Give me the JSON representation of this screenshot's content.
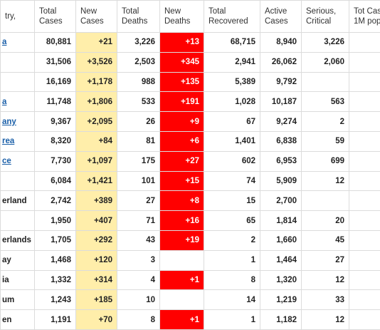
{
  "table": {
    "header": [
      [
        "try,"
      ],
      [
        "Total",
        "Cases"
      ],
      [
        "New",
        "Cases"
      ],
      [
        "Total",
        "Deaths"
      ],
      [
        "New",
        "Deaths"
      ],
      [
        "Total",
        "Recovered"
      ],
      [
        "Active",
        "Cases"
      ],
      [
        "Serious,",
        "Critical"
      ],
      [
        "Tot Case",
        "1M pop"
      ]
    ],
    "rows": [
      [
        "a",
        "80,881",
        "+21",
        "3,226",
        "+13",
        "68,715",
        "8,940",
        "3,226",
        null
      ],
      [
        null,
        "31,506",
        "+3,526",
        "2,503",
        "+345",
        "2,941",
        "26,062",
        "2,060",
        null
      ],
      [
        null,
        "16,169",
        "+1,178",
        "988",
        "+135",
        "5,389",
        "9,792",
        null,
        null
      ],
      [
        "a",
        "11,748",
        "+1,806",
        "533",
        "+191",
        "1,028",
        "10,187",
        "563",
        null
      ],
      [
        "any",
        "9,367",
        "+2,095",
        "26",
        "+9",
        "67",
        "9,274",
        "2",
        null
      ],
      [
        "rea",
        "8,320",
        "+84",
        "81",
        "+6",
        "1,401",
        "6,838",
        "59",
        null
      ],
      [
        "ce",
        "7,730",
        "+1,097",
        "175",
        "+27",
        "602",
        "6,953",
        "699",
        null
      ],
      [
        null,
        "6,084",
        "+1,421",
        "101",
        "+15",
        "74",
        "5,909",
        "12",
        null
      ],
      [
        "erland",
        "2,742",
        "+389",
        "27",
        "+8",
        "15",
        "2,700",
        null,
        null
      ],
      [
        null,
        "1,950",
        "+407",
        "71",
        "+16",
        "65",
        "1,814",
        "20",
        null
      ],
      [
        "erlands",
        "1,705",
        "+292",
        "43",
        "+19",
        "2",
        "1,660",
        "45",
        null
      ],
      [
        "ay",
        "1,468",
        "+120",
        "3",
        null,
        "1",
        "1,464",
        "27",
        null
      ],
      [
        "ia",
        "1,332",
        "+314",
        "4",
        "+1",
        "8",
        "1,320",
        "12",
        null
      ],
      [
        "um",
        "1,243",
        "+185",
        "10",
        null,
        "14",
        "1,219",
        "33",
        null
      ],
      [
        "en",
        "1,191",
        "+70",
        "8",
        "+1",
        "1",
        "1,182",
        "12",
        null
      ]
    ],
    "linked_rows": [
      0,
      3,
      4,
      5,
      6
    ]
  }
}
